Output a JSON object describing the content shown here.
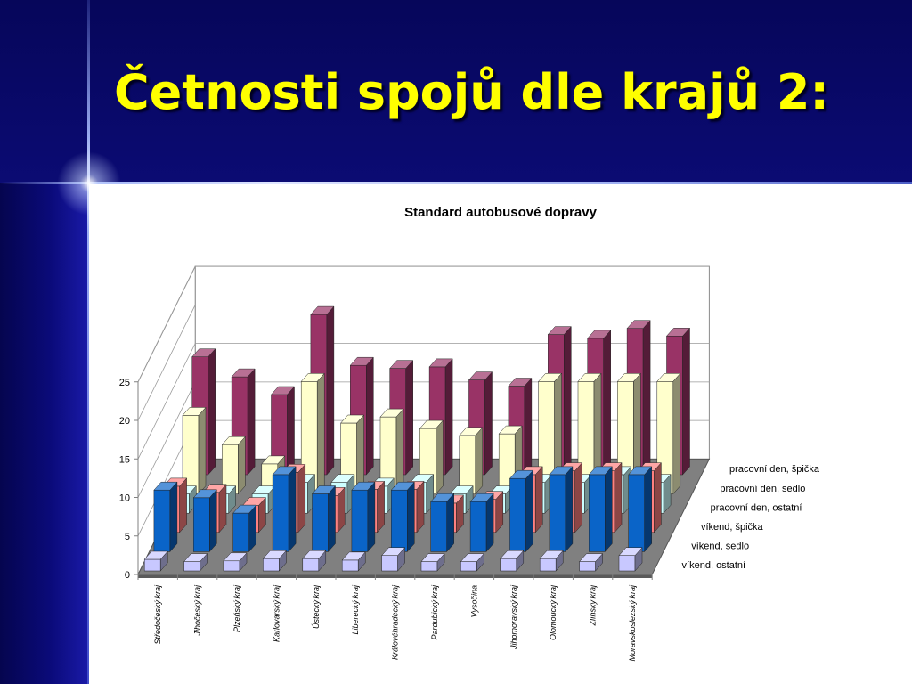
{
  "slide": {
    "title": "Četnosti spojů dle krajů 2:"
  },
  "chart_data": {
    "type": "bar3d",
    "title": "Standard autobusové dopravy",
    "xlabel": "",
    "ylabel": "",
    "ylim": [
      0,
      25
    ],
    "yticks": [
      0,
      5,
      10,
      15,
      20,
      25
    ],
    "grid": true,
    "categories": [
      "Středočeský kraj",
      "Jihočeský kraj",
      "Plzeňský kraj",
      "Karlovarský kraj",
      "Ústecký kraj",
      "Liberecký kraj",
      "Královéhradecký kraj",
      "Pardubický kraj",
      "Vysočina",
      "Jihomoravský kraj",
      "Olomoucký kraj",
      "Zlínský kraj",
      "Moravskoslezský kraj"
    ],
    "series": [
      {
        "name": "víkend, ostatní",
        "color": "#c8c8ff",
        "values": [
          1.5,
          1.2,
          1.3,
          1.6,
          1.6,
          1.4,
          2.0,
          1.2,
          1.2,
          1.6,
          1.6,
          1.2,
          2.0
        ]
      },
      {
        "name": "víkend, sedlo",
        "color": "#0a64c8",
        "values": [
          8.0,
          7.0,
          5.0,
          10.0,
          7.5,
          8.0,
          8.0,
          6.5,
          6.5,
          9.5,
          10.0,
          10.0,
          10.0
        ]
      },
      {
        "name": "víkend, špička",
        "color": "#ff8080",
        "values": [
          6.0,
          5.2,
          3.5,
          7.8,
          4.8,
          5.6,
          5.6,
          3.8,
          4.3,
          7.5,
          8.0,
          8.0,
          8.0
        ]
      },
      {
        "name": "pracovní den, ostatní",
        "color": "#ccffff",
        "values": [
          2.5,
          2.5,
          2.5,
          4.0,
          4.0,
          3.5,
          4.0,
          2.5,
          2.5,
          4.0,
          4.0,
          5.0,
          4.0
        ]
      },
      {
        "name": "pracovní den, sedlo",
        "color": "#ffffcc",
        "values": [
          10.2,
          6.4,
          3.9,
          14.6,
          9.2,
          10.0,
          8.5,
          7.6,
          7.8,
          14.6,
          14.6,
          14.6,
          14.6
        ]
      },
      {
        "name": "pracovní den, špička",
        "color": "#993366",
        "values": [
          15.3,
          12.7,
          10.4,
          20.8,
          14.2,
          13.8,
          14.0,
          12.3,
          11.5,
          18.2,
          17.7,
          19.0,
          18.0
        ]
      }
    ]
  }
}
